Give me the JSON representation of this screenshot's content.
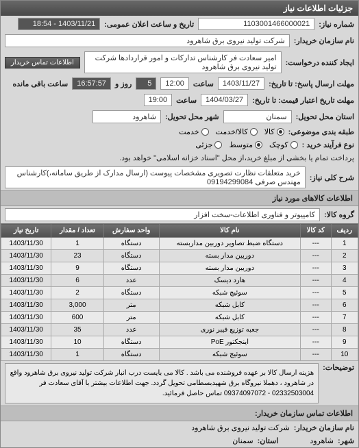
{
  "panel": {
    "title": "جزئیات اطلاعات نیاز"
  },
  "header": {
    "req_no_label": "شماره نیاز:",
    "req_no": "1103001466000021",
    "public_announce_label": "تاریخ و ساعت اعلان عمومی:",
    "public_announce": "1403/11/21 - 18:54",
    "buyer_label": "نام سازمان خریدار:",
    "buyer": "شرکت تولید نیروی برق شاهرود",
    "requester_label": "ایجاد کننده درخواست:",
    "requester": "امیر سعادت فر کارشناس تدارکات و امور قراردادها شرکت تولید نیروی برق شاهرود",
    "contact_btn": "اطلاعات تماس خریدار",
    "deadline_send_label": "مهلت ارسال پاسخ: تا تاریخ:",
    "deadline_send_date": "1403/11/27",
    "time_label": "ساعت",
    "deadline_send_time": "12:00",
    "days_label": "روز و",
    "days": "5",
    "remain_label": "ساعت باقی مانده",
    "remain": "16:57:57",
    "validity_label": "مهلت تاریخ اعتبار قیمت: تا تاریخ:",
    "validity_date": "1404/03/27",
    "validity_time": "19:00",
    "location_label": "استان محل تحویل:",
    "province": "سمنان",
    "city_label": "شهر محل تحویل:",
    "city": "شاهرود",
    "pack_label": "طبقه بندی موضوعی:",
    "pack_opts": [
      "کالا",
      "کالا/خدمت",
      "خدمت"
    ],
    "pack_selected": 0,
    "proc_label": "نوع فرآیند خرید :",
    "proc_opts": [
      "کوچک",
      "متوسط",
      "جزئی"
    ],
    "proc_selected": 1,
    "pay_note": "پرداخت تمام یا بخشی از مبلغ خرید،از محل \"اسناد خزانه اسلامی\" خواهد بود.",
    "desc_label": "شرح کلی نیاز:",
    "desc": "خرید متعلقات نظارت تصویری مشخصات پیوست (ارسال مدارک از طریق سامانه،)کارشناس مهندس صرفی 09194299084",
    "goods_section": "اطلاعات کالاهای مورد نیاز",
    "group_label": "گروه کالا:",
    "group": "کامپیوتر و فناوری اطلاعات-سخت افزار"
  },
  "table": {
    "columns": [
      "ردیف",
      "کد کالا",
      "نام کالا",
      "واحد سفارش",
      "تعداد / مقدار",
      "تاریخ نیاز"
    ],
    "rows": [
      [
        "1",
        "---",
        "دستگاه ضبط تصاویر دوربین مداربسته",
        "دستگاه",
        "1",
        "1403/11/30"
      ],
      [
        "2",
        "---",
        "دوربین مدار بسته",
        "دستگاه",
        "23",
        "1403/11/30"
      ],
      [
        "3",
        "---",
        "دوربین مدار بسته",
        "دستگاه",
        "9",
        "1403/11/30"
      ],
      [
        "4",
        "---",
        "هارد دیسک",
        "عدد",
        "6",
        "1403/11/30"
      ],
      [
        "5",
        "---",
        "سوئیچ شبکه",
        "دستگاه",
        "2",
        "1403/11/30"
      ],
      [
        "6",
        "---",
        "کابل شبکه",
        "متر",
        "3,000",
        "1403/11/30"
      ],
      [
        "7",
        "---",
        "کابل شبکه",
        "متر",
        "600",
        "1403/11/30"
      ],
      [
        "8",
        "---",
        "جعبه توزیع فیبر نوری",
        "عدد",
        "35",
        "1403/11/30"
      ],
      [
        "9",
        "---",
        "اینجکتور PoE",
        "دستگاه",
        "10",
        "1403/11/30"
      ],
      [
        "10",
        "---",
        "سوئیچ شبکه",
        "دستگاه",
        "1",
        "1403/11/30"
      ]
    ]
  },
  "footer": {
    "note_label": "توضیحات:",
    "note": "هزینه ارسال کالا بر عهده فروشنده می باشد . کالا می بایست درب انبار شرکت تولید نیروی برق شاهرود واقع در شاهرود ، دهملا نیروگاه برق شهیدبسطامی تحویل گردد. جهت اطلاعات بیشتر با آقای سعادت فر 02332503004 - 09374097072 تماس حاصل فرمائید.",
    "contact_section": "اطلاعات تماس سازمان خریدار:",
    "org_label": "نام سازمان خریدار:",
    "org": "شرکت تولید نیروی برق شاهرود",
    "city2_label": "شهر:",
    "city2": "شاهرود",
    "province2_label": "استان:",
    "province2": "سمنان"
  }
}
